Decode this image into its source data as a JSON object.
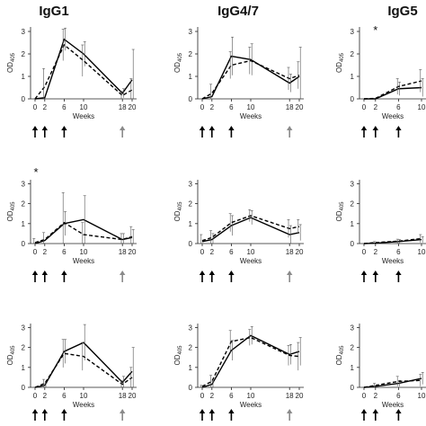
{
  "column_titles": [
    "IgG1",
    "IgG4/7",
    "IgG5"
  ],
  "chart_data": [
    {
      "type": "line",
      "row": 0,
      "col": 0,
      "ylabel": "OD405",
      "xlabel": "Weeks",
      "x": [
        0,
        2,
        6,
        10,
        18,
        20
      ],
      "x_ticks": [
        0,
        2,
        6,
        10,
        18,
        20
      ],
      "xlim": [
        0,
        20
      ],
      "y_ticks": [
        0,
        1,
        2,
        3
      ],
      "ylim": [
        0,
        3.2
      ],
      "series": [
        {
          "style": "solid",
          "values": [
            0.0,
            0.05,
            2.65,
            2.0,
            0.25,
            0.85
          ],
          "error": [
            0,
            0,
            0.5,
            0.55,
            0.2,
            1.35
          ]
        },
        {
          "style": "dashed",
          "values": [
            0.0,
            0.55,
            2.4,
            1.7,
            0.15,
            0.4
          ],
          "error": [
            0,
            0.8,
            0.7,
            0.7,
            0.2,
            0.5
          ]
        }
      ],
      "immunizations": [
        "black",
        "black",
        "black",
        "grey"
      ],
      "annotation": ""
    },
    {
      "type": "line",
      "row": 0,
      "col": 1,
      "ylabel": "OD405",
      "xlabel": "Weeks",
      "x": [
        0,
        2,
        6,
        10,
        18,
        20
      ],
      "x_ticks": [
        0,
        2,
        6,
        10,
        18,
        20
      ],
      "xlim": [
        0,
        20
      ],
      "y_ticks": [
        0,
        1,
        2,
        3
      ],
      "ylim": [
        0,
        3.2
      ],
      "series": [
        {
          "style": "solid",
          "values": [
            0.0,
            0.1,
            1.9,
            1.75,
            0.7,
            1.0
          ],
          "error": [
            0,
            0,
            0.85,
            0.7,
            0.4,
            1.3
          ]
        },
        {
          "style": "dashed",
          "values": [
            0.0,
            0.25,
            1.5,
            1.7,
            0.9,
            1.05
          ],
          "error": [
            0,
            0.4,
            0.6,
            0.6,
            0.5,
            0.6
          ]
        }
      ],
      "immunizations": [
        "black",
        "black",
        "black",
        "grey"
      ],
      "annotation": ""
    },
    {
      "type": "line",
      "row": 0,
      "col": 2,
      "ylabel": "OD405",
      "xlabel": "Weeks",
      "x": [
        0,
        2,
        6,
        10
      ],
      "x_ticks": [
        0,
        2,
        6,
        10
      ],
      "xlim": [
        0,
        10
      ],
      "y_ticks": [
        0,
        1,
        2,
        3
      ],
      "ylim": [
        0,
        3.2
      ],
      "series": [
        {
          "style": "solid",
          "values": [
            0.0,
            0.0,
            0.45,
            0.5
          ],
          "error": [
            0,
            0,
            0.3,
            0.4
          ]
        },
        {
          "style": "dashed",
          "values": [
            0.0,
            0.02,
            0.55,
            0.8
          ],
          "error": [
            0,
            0,
            0.35,
            0.5
          ]
        }
      ],
      "immunizations": [
        "black",
        "black",
        "black"
      ],
      "annotation": "*"
    },
    {
      "type": "line",
      "row": 1,
      "col": 0,
      "ylabel": "OD405",
      "xlabel": "Weeks",
      "x": [
        0,
        2,
        6,
        10,
        18,
        20
      ],
      "x_ticks": [
        0,
        2,
        6,
        10,
        18,
        20
      ],
      "xlim": [
        0,
        20
      ],
      "y_ticks": [
        0,
        1,
        2,
        3
      ],
      "ylim": [
        0,
        3.2
      ],
      "series": [
        {
          "style": "solid",
          "values": [
            0.0,
            0.15,
            1.0,
            1.2,
            0.2,
            0.3
          ],
          "error": [
            0,
            0,
            0.6,
            1.2,
            0.3,
            0.4
          ]
        },
        {
          "style": "dashed",
          "values": [
            0.05,
            0.2,
            1.05,
            0.45,
            0.2,
            0.35
          ],
          "error": [
            0.2,
            0.35,
            1.5,
            0.6,
            0.3,
            0.5
          ]
        }
      ],
      "immunizations": [
        "black",
        "black",
        "black",
        "grey"
      ],
      "annotation": "*"
    },
    {
      "type": "line",
      "row": 1,
      "col": 1,
      "ylabel": "OD405",
      "xlabel": "Weeks",
      "x": [
        0,
        2,
        6,
        10,
        18,
        20
      ],
      "x_ticks": [
        0,
        2,
        6,
        10,
        18,
        20
      ],
      "xlim": [
        0,
        20
      ],
      "y_ticks": [
        0,
        1,
        2,
        3
      ],
      "ylim": [
        0,
        3.2
      ],
      "series": [
        {
          "style": "solid",
          "values": [
            0.1,
            0.2,
            0.9,
            1.3,
            0.45,
            0.55
          ],
          "error": [
            0,
            0.3,
            0.5,
            0.35,
            0.45,
            0.4
          ]
        },
        {
          "style": "dashed",
          "values": [
            0.15,
            0.3,
            1.05,
            1.4,
            0.75,
            0.85
          ],
          "error": [
            0.3,
            0.35,
            0.45,
            0.3,
            0.45,
            0.35
          ]
        }
      ],
      "immunizations": [
        "black",
        "black",
        "black",
        "grey"
      ],
      "annotation": ""
    },
    {
      "type": "line",
      "row": 1,
      "col": 2,
      "ylabel": "OD405",
      "xlabel": "Weeks",
      "x": [
        0,
        2,
        6,
        10
      ],
      "x_ticks": [
        0,
        2,
        6,
        10
      ],
      "xlim": [
        0,
        10
      ],
      "y_ticks": [
        0,
        1,
        2,
        3
      ],
      "ylim": [
        0,
        3.2
      ],
      "series": [
        {
          "style": "solid",
          "values": [
            0.0,
            0.02,
            0.1,
            0.2
          ],
          "error": [
            0,
            0,
            0.1,
            0.15
          ]
        },
        {
          "style": "dashed",
          "values": [
            0.0,
            0.05,
            0.12,
            0.25
          ],
          "error": [
            0,
            0.05,
            0.1,
            0.2
          ]
        }
      ],
      "immunizations": [
        "black",
        "black",
        "black"
      ],
      "annotation": ""
    },
    {
      "type": "line",
      "row": 2,
      "col": 0,
      "ylabel": "OD405",
      "xlabel": "Weeks",
      "x": [
        0,
        2,
        6,
        10,
        18,
        20
      ],
      "x_ticks": [
        0,
        2,
        6,
        10,
        18,
        20
      ],
      "xlim": [
        0,
        20
      ],
      "y_ticks": [
        0,
        1,
        2,
        3
      ],
      "ylim": [
        0,
        3.2
      ],
      "series": [
        {
          "style": "solid",
          "values": [
            0.0,
            0.1,
            1.8,
            2.25,
            0.25,
            0.8
          ],
          "error": [
            0,
            0.1,
            0.6,
            0.9,
            0.3,
            1.2
          ]
        },
        {
          "style": "dashed",
          "values": [
            0.0,
            0.2,
            1.7,
            1.55,
            0.15,
            0.5
          ],
          "error": [
            0,
            0.2,
            0.7,
            0.7,
            0.2,
            0.5
          ]
        }
      ],
      "immunizations": [
        "black",
        "black",
        "black",
        "grey"
      ],
      "annotation": ""
    },
    {
      "type": "line",
      "row": 2,
      "col": 1,
      "ylabel": "OD405",
      "xlabel": "Weeks",
      "x": [
        0,
        2,
        6,
        10,
        18,
        20
      ],
      "x_ticks": [
        0,
        2,
        6,
        10,
        18,
        20
      ],
      "xlim": [
        0,
        20
      ],
      "y_ticks": [
        0,
        1,
        2,
        3
      ],
      "ylim": [
        0,
        3.2
      ],
      "series": [
        {
          "style": "solid",
          "values": [
            0.0,
            0.15,
            1.85,
            2.6,
            1.65,
            1.8
          ],
          "error": [
            0,
            0.15,
            0.5,
            0.45,
            0.5,
            0.7
          ]
        },
        {
          "style": "dashed",
          "values": [
            0.05,
            0.3,
            2.3,
            2.5,
            1.6,
            1.55
          ],
          "error": [
            0.05,
            0.3,
            0.55,
            0.4,
            0.5,
            0.7
          ]
        }
      ],
      "immunizations": [
        "black",
        "black",
        "black",
        "grey"
      ],
      "annotation": ""
    },
    {
      "type": "line",
      "row": 2,
      "col": 2,
      "ylabel": "OD405",
      "xlabel": "Weeks",
      "x": [
        0,
        2,
        6,
        10
      ],
      "x_ticks": [
        0,
        2,
        6,
        10
      ],
      "xlim": [
        0,
        10
      ],
      "y_ticks": [
        0,
        1,
        2,
        3
      ],
      "ylim": [
        0,
        3.2
      ],
      "series": [
        {
          "style": "solid",
          "values": [
            0.0,
            0.05,
            0.2,
            0.45
          ],
          "error": [
            0,
            0,
            0.15,
            0.3
          ]
        },
        {
          "style": "dashed",
          "values": [
            0.0,
            0.1,
            0.3,
            0.35
          ],
          "error": [
            0,
            0.1,
            0.25,
            0.3
          ]
        }
      ],
      "immunizations": [
        "black",
        "black",
        "black"
      ],
      "annotation": ""
    }
  ],
  "colors": {
    "immunization_black": "#000000",
    "immunization_grey": "#8a8a8a",
    "axis": "#222222",
    "line": "#000000"
  }
}
